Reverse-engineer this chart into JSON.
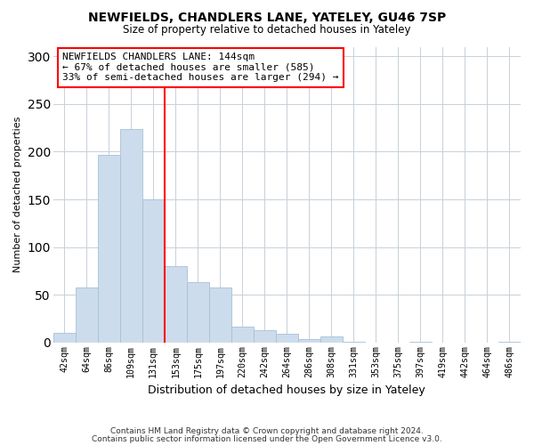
{
  "title": "NEWFIELDS, CHANDLERS LANE, YATELEY, GU46 7SP",
  "subtitle": "Size of property relative to detached houses in Yateley",
  "xlabel": "Distribution of detached houses by size in Yateley",
  "ylabel": "Number of detached properties",
  "bar_labels": [
    "42sqm",
    "64sqm",
    "86sqm",
    "109sqm",
    "131sqm",
    "153sqm",
    "175sqm",
    "197sqm",
    "220sqm",
    "242sqm",
    "264sqm",
    "286sqm",
    "308sqm",
    "331sqm",
    "353sqm",
    "375sqm",
    "397sqm",
    "419sqm",
    "442sqm",
    "464sqm",
    "486sqm"
  ],
  "bar_values": [
    10,
    58,
    197,
    224,
    150,
    80,
    63,
    58,
    17,
    13,
    9,
    4,
    6,
    1,
    0,
    0,
    1,
    0,
    0,
    0,
    1
  ],
  "bar_color": "#ccdcec",
  "bar_edge_color": "#a8c0d8",
  "vline_x": 4.5,
  "vline_color": "red",
  "annotation_line1": "NEWFIELDS CHANDLERS LANE: 144sqm",
  "annotation_line2": "← 67% of detached houses are smaller (585)",
  "annotation_line3": "33% of semi-detached houses are larger (294) →",
  "ylim": [
    0,
    310
  ],
  "yticks": [
    0,
    50,
    100,
    150,
    200,
    250,
    300
  ],
  "footnote_line1": "Contains HM Land Registry data © Crown copyright and database right 2024.",
  "footnote_line2": "Contains public sector information licensed under the Open Government Licence v3.0.",
  "bg_color": "#ffffff",
  "grid_color": "#c8d0d8"
}
